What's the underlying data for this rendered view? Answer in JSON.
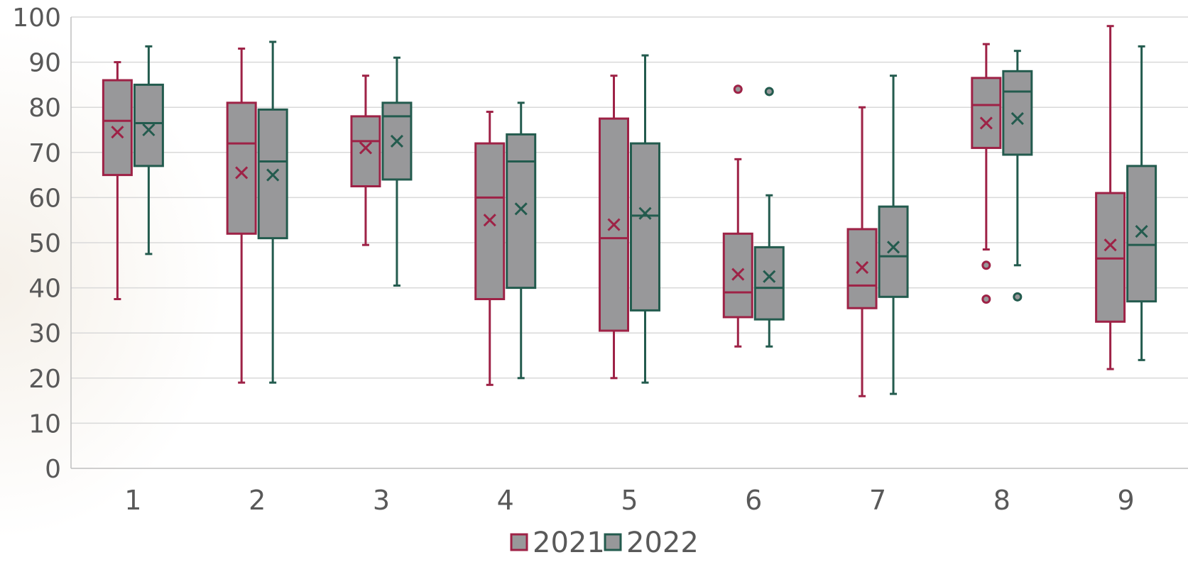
{
  "chart_data": {
    "type": "box",
    "categories": [
      "1",
      "2",
      "3",
      "4",
      "5",
      "6",
      "7",
      "8",
      "9"
    ],
    "ylim": [
      0,
      100
    ],
    "yticks": [
      "0",
      "10",
      "20",
      "30",
      "40",
      "50",
      "60",
      "70",
      "80",
      "90",
      "100"
    ],
    "grid": true,
    "legend_position": "bottom",
    "series": [
      {
        "name": "2021",
        "color": "#9e2246",
        "boxes": [
          {
            "min": 37.5,
            "q1": 65,
            "median": 77,
            "q3": 86,
            "max": 90,
            "mean": 74.5,
            "outliers": []
          },
          {
            "min": 19,
            "q1": 52,
            "median": 72,
            "q3": 81,
            "max": 93,
            "mean": 65.5,
            "outliers": []
          },
          {
            "min": 49.5,
            "q1": 62.5,
            "median": 72.5,
            "q3": 78,
            "max": 87,
            "mean": 71,
            "outliers": []
          },
          {
            "min": 18.5,
            "q1": 37.5,
            "median": 60,
            "q3": 72,
            "max": 79,
            "mean": 55,
            "outliers": []
          },
          {
            "min": 20,
            "q1": 30.5,
            "median": 51,
            "q3": 77.5,
            "max": 87,
            "mean": 54,
            "outliers": []
          },
          {
            "min": 27,
            "q1": 33.5,
            "median": 39,
            "q3": 52,
            "max": 68.5,
            "mean": 43,
            "outliers": [
              84
            ]
          },
          {
            "min": 16,
            "q1": 35.5,
            "median": 40.5,
            "q3": 53,
            "max": 80,
            "mean": 44.5,
            "outliers": []
          },
          {
            "min": 48.5,
            "q1": 71,
            "median": 80.5,
            "q3": 86.5,
            "max": 94,
            "mean": 76.5,
            "outliers": [
              45,
              37.5
            ]
          },
          {
            "min": 22,
            "q1": 32.5,
            "median": 46.5,
            "q3": 61,
            "max": 98,
            "mean": 49.5,
            "outliers": []
          }
        ]
      },
      {
        "name": "2022",
        "color": "#235b4e",
        "boxes": [
          {
            "min": 47.5,
            "q1": 67,
            "median": 76.5,
            "q3": 85,
            "max": 93.5,
            "mean": 75,
            "outliers": []
          },
          {
            "min": 19,
            "q1": 51,
            "median": 68,
            "q3": 79.5,
            "max": 94.5,
            "mean": 65,
            "outliers": []
          },
          {
            "min": 40.5,
            "q1": 64,
            "median": 78,
            "q3": 81,
            "max": 91,
            "mean": 72.5,
            "outliers": []
          },
          {
            "min": 20,
            "q1": 40,
            "median": 68,
            "q3": 74,
            "max": 81,
            "mean": 57.5,
            "outliers": []
          },
          {
            "min": 19,
            "q1": 35,
            "median": 56,
            "q3": 72,
            "max": 91.5,
            "mean": 56.5,
            "outliers": []
          },
          {
            "min": 27,
            "q1": 33,
            "median": 40,
            "q3": 49,
            "max": 60.5,
            "mean": 42.5,
            "outliers": [
              83.5
            ]
          },
          {
            "min": 16.5,
            "q1": 38,
            "median": 47,
            "q3": 58,
            "max": 87,
            "mean": 49,
            "outliers": []
          },
          {
            "min": 45,
            "q1": 69.5,
            "median": 83.5,
            "q3": 88,
            "max": 92.5,
            "mean": 77.5,
            "outliers": [
              38
            ]
          },
          {
            "min": 24,
            "q1": 37,
            "median": 49.5,
            "q3": 67,
            "max": 93.5,
            "mean": 52.5,
            "outliers": []
          }
        ]
      }
    ]
  }
}
